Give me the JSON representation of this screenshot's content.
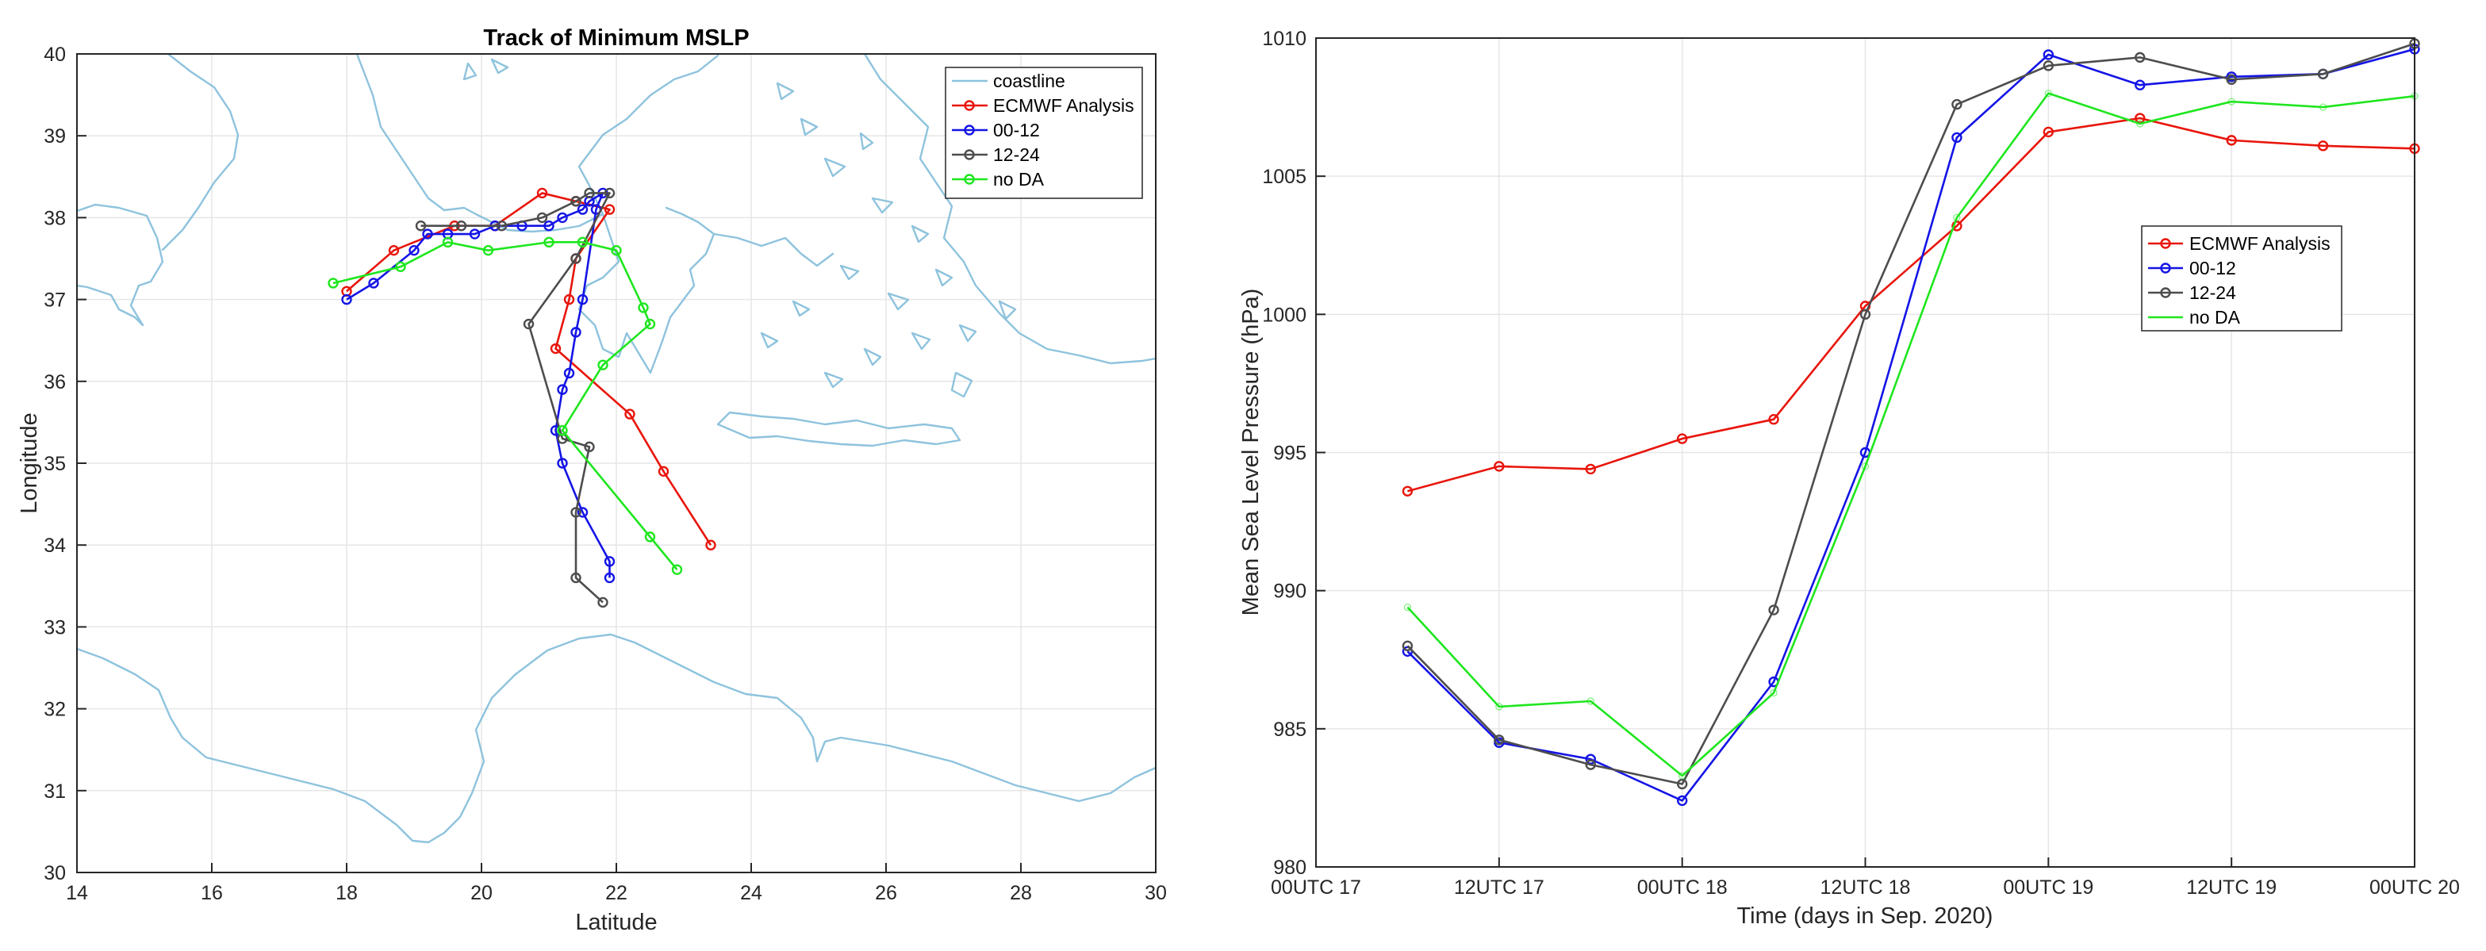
{
  "chart_data": [
    {
      "type": "line",
      "title": "Track of Minimum MSLP",
      "xlabel": "Latitude",
      "ylabel": "Longitude",
      "xlim": [
        14,
        30
      ],
      "ylim": [
        30,
        40
      ],
      "xticks": [
        "14",
        "16",
        "18",
        "20",
        "22",
        "24",
        "26",
        "28",
        "30"
      ],
      "yticks": [
        "30",
        "31",
        "32",
        "33",
        "34",
        "35",
        "36",
        "37",
        "38",
        "39",
        "40"
      ],
      "grid": true,
      "legend_position": "top-right",
      "legend": [
        "coastline",
        "ECMWF Analysis",
        "00-12",
        "12-24",
        "no DA"
      ],
      "coastline_color": "#8ec3dd",
      "series": [
        {
          "name": "ECMWF Analysis",
          "color": "#e8150b",
          "marker": "circle",
          "x": [
            18.0,
            18.7,
            19.6,
            20.2,
            20.9,
            21.4,
            21.9,
            21.4,
            21.3,
            21.1,
            22.2,
            22.7,
            23.4
          ],
          "y": [
            37.1,
            37.6,
            37.9,
            37.9,
            38.3,
            38.2,
            38.1,
            37.5,
            37.0,
            36.4,
            35.6,
            34.9,
            34.0
          ]
        },
        {
          "name": "00-12",
          "color": "#1414e6",
          "marker": "circle",
          "x": [
            18.0,
            18.4,
            19.0,
            19.2,
            19.5,
            19.9,
            20.2,
            20.6,
            21.0,
            21.2,
            21.5,
            21.6,
            21.8,
            21.7,
            21.5,
            21.4,
            21.3,
            21.2,
            21.1,
            21.2,
            21.5,
            21.9,
            21.9
          ],
          "y": [
            37.0,
            37.2,
            37.6,
            37.8,
            37.8,
            37.8,
            37.9,
            37.9,
            37.9,
            38.0,
            38.1,
            38.2,
            38.3,
            38.1,
            37.0,
            36.6,
            36.1,
            35.9,
            35.4,
            35.0,
            34.4,
            33.8,
            33.6
          ]
        },
        {
          "name": "12-24",
          "color": "#4d4d4d",
          "marker": "circle",
          "x": [
            19.1,
            19.7,
            20.3,
            20.9,
            21.4,
            21.6,
            21.9,
            21.4,
            20.7,
            21.2,
            21.6,
            21.4,
            21.4,
            21.8
          ],
          "y": [
            37.9,
            37.9,
            37.9,
            38.0,
            38.2,
            38.3,
            38.3,
            37.5,
            36.7,
            35.3,
            35.2,
            34.4,
            33.6,
            33.3
          ]
        },
        {
          "name": "no DA",
          "color": "#1ee61e",
          "marker": "circle",
          "x": [
            17.8,
            18.8,
            19.5,
            20.1,
            21.0,
            21.5,
            22.0,
            22.4,
            22.5,
            21.8,
            21.2,
            22.5,
            22.9
          ],
          "y": [
            37.2,
            37.4,
            37.7,
            37.6,
            37.7,
            37.7,
            37.6,
            36.9,
            36.7,
            36.2,
            35.4,
            34.1,
            33.7
          ]
        }
      ]
    },
    {
      "type": "line",
      "title": "",
      "xlabel": "Time (days in Sep. 2020)",
      "ylabel": "Mean Sea Level Pressure (hPa)",
      "x": [
        6,
        12,
        18,
        24,
        30,
        36,
        42,
        48,
        54,
        60,
        66,
        72
      ],
      "xlim": [
        0,
        72
      ],
      "ylim": [
        980,
        1010
      ],
      "xticks": [
        {
          "value": 0,
          "label": "00UTC 17"
        },
        {
          "value": 12,
          "label": "12UTC 17"
        },
        {
          "value": 24,
          "label": "00UTC 18"
        },
        {
          "value": 36,
          "label": "12UTC 18"
        },
        {
          "value": 48,
          "label": "00UTC 19"
        },
        {
          "value": 60,
          "label": "12UTC 19"
        },
        {
          "value": 72,
          "label": "00UTC 20"
        }
      ],
      "yticks": [
        "980",
        "985",
        "990",
        "995",
        "1000",
        "1005",
        "1010"
      ],
      "grid": true,
      "legend_position": "center-right",
      "series": [
        {
          "name": "ECMWF Analysis",
          "color": "#e8150b",
          "marker": "circle",
          "values": [
            993.6,
            994.5,
            994.4,
            995.5,
            996.2,
            1000.3,
            1003.2,
            1006.6,
            1007.1,
            1006.3,
            1006.1,
            1006.0
          ]
        },
        {
          "name": "00-12",
          "color": "#1414e6",
          "marker": "circle",
          "values": [
            987.8,
            984.5,
            983.9,
            982.4,
            986.7,
            995.0,
            1006.4,
            1009.4,
            1008.3,
            1008.6,
            1008.7,
            1009.6
          ]
        },
        {
          "name": "12-24",
          "color": "#4d4d4d",
          "marker": "circle",
          "values": [
            988.0,
            984.6,
            983.7,
            983.0,
            989.3,
            1000.0,
            1007.6,
            1009.0,
            1009.3,
            1008.5,
            1008.7,
            1009.8
          ]
        },
        {
          "name": "no DA",
          "color": "#1ee61e",
          "marker": "none",
          "values": [
            989.4,
            985.8,
            986.0,
            983.3,
            986.3,
            994.5,
            1003.5,
            1008.0,
            1006.9,
            1007.7,
            1007.5,
            1007.9
          ]
        }
      ]
    }
  ]
}
